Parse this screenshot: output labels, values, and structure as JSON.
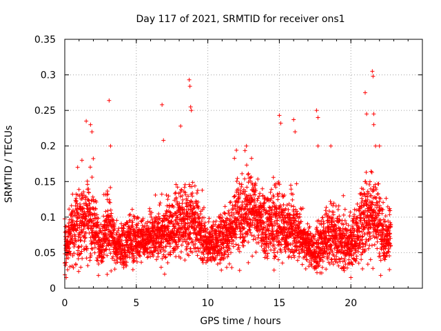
{
  "chart_data": {
    "type": "scatter",
    "title": "Day 117 of 2021, SRMTID for receiver ons1",
    "xlabel": "GPS time / hours",
    "ylabel": "SRMTID / TECUs",
    "xlim": [
      0,
      25
    ],
    "ylim": [
      0,
      0.35
    ],
    "grid": true,
    "legend": "none",
    "marker": "+",
    "color": "#ff0000",
    "xticks": [
      {
        "value": 0,
        "label": "0"
      },
      {
        "value": 5,
        "label": "5"
      },
      {
        "value": 10,
        "label": "10"
      },
      {
        "value": 15,
        "label": "15"
      },
      {
        "value": 20,
        "label": "20"
      }
    ],
    "yticks": [
      {
        "value": 0,
        "label": "0"
      },
      {
        "value": 0.05,
        "label": "0.05"
      },
      {
        "value": 0.1,
        "label": "0.1"
      },
      {
        "value": 0.15,
        "label": "0.15"
      },
      {
        "value": 0.2,
        "label": "0.2"
      },
      {
        "value": 0.25,
        "label": "0.25"
      },
      {
        "value": 0.3,
        "label": "0.3"
      },
      {
        "value": 0.35,
        "label": "0.35"
      }
    ],
    "series": [
      {
        "name": "SRMTID",
        "profile": {
          "x": [
            0.0,
            0.5,
            1.0,
            1.5,
            2.0,
            2.5,
            3.0,
            3.5,
            4.0,
            4.5,
            5.0,
            5.5,
            6.0,
            6.5,
            7.0,
            7.5,
            8.0,
            8.5,
            9.0,
            9.5,
            10.0,
            10.5,
            11.0,
            11.5,
            12.0,
            12.5,
            13.0,
            13.5,
            14.0,
            14.5,
            15.0,
            15.5,
            16.0,
            16.5,
            17.0,
            17.5,
            18.0,
            18.5,
            19.0,
            19.5,
            20.0,
            20.5,
            21.0,
            21.5,
            22.0,
            22.5,
            22.8
          ],
          "median": [
            0.05,
            0.08,
            0.09,
            0.1,
            0.09,
            0.06,
            0.09,
            0.06,
            0.06,
            0.07,
            0.065,
            0.07,
            0.07,
            0.075,
            0.08,
            0.085,
            0.09,
            0.09,
            0.095,
            0.08,
            0.06,
            0.065,
            0.07,
            0.08,
            0.1,
            0.11,
            0.11,
            0.1,
            0.09,
            0.09,
            0.09,
            0.085,
            0.08,
            0.075,
            0.06,
            0.05,
            0.06,
            0.075,
            0.07,
            0.065,
            0.06,
            0.08,
            0.1,
            0.11,
            0.09,
            0.07,
            0.08
          ],
          "spread": [
            0.02,
            0.03,
            0.035,
            0.04,
            0.035,
            0.02,
            0.035,
            0.02,
            0.02,
            0.025,
            0.02,
            0.02,
            0.02,
            0.025,
            0.035,
            0.03,
            0.03,
            0.035,
            0.03,
            0.025,
            0.02,
            0.02,
            0.025,
            0.03,
            0.035,
            0.04,
            0.035,
            0.03,
            0.03,
            0.035,
            0.035,
            0.03,
            0.03,
            0.025,
            0.02,
            0.02,
            0.025,
            0.03,
            0.025,
            0.025,
            0.025,
            0.03,
            0.04,
            0.045,
            0.035,
            0.025,
            0.025
          ],
          "count": 4000
        },
        "highlights": [
          {
            "x": 0.1,
            "y": 0.015
          },
          {
            "x": 0.9,
            "y": 0.17
          },
          {
            "x": 1.2,
            "y": 0.18
          },
          {
            "x": 1.5,
            "y": 0.235
          },
          {
            "x": 1.8,
            "y": 0.23
          },
          {
            "x": 1.9,
            "y": 0.22
          },
          {
            "x": 3.1,
            "y": 0.264
          },
          {
            "x": 3.2,
            "y": 0.2
          },
          {
            "x": 6.8,
            "y": 0.258
          },
          {
            "x": 6.9,
            "y": 0.208
          },
          {
            "x": 8.1,
            "y": 0.228
          },
          {
            "x": 8.7,
            "y": 0.293
          },
          {
            "x": 8.75,
            "y": 0.284
          },
          {
            "x": 8.8,
            "y": 0.255
          },
          {
            "x": 8.85,
            "y": 0.25
          },
          {
            "x": 12.0,
            "y": 0.194
          },
          {
            "x": 12.7,
            "y": 0.2
          },
          {
            "x": 15.0,
            "y": 0.243
          },
          {
            "x": 15.1,
            "y": 0.232
          },
          {
            "x": 16.0,
            "y": 0.237
          },
          {
            "x": 16.1,
            "y": 0.22
          },
          {
            "x": 17.6,
            "y": 0.25
          },
          {
            "x": 17.7,
            "y": 0.24
          },
          {
            "x": 17.7,
            "y": 0.2
          },
          {
            "x": 18.6,
            "y": 0.2
          },
          {
            "x": 20.0,
            "y": 0.015
          },
          {
            "x": 21.0,
            "y": 0.275
          },
          {
            "x": 21.1,
            "y": 0.245
          },
          {
            "x": 21.5,
            "y": 0.305
          },
          {
            "x": 21.55,
            "y": 0.298
          },
          {
            "x": 21.6,
            "y": 0.245
          },
          {
            "x": 21.6,
            "y": 0.23
          },
          {
            "x": 22.0,
            "y": 0.2
          }
        ]
      }
    ]
  }
}
